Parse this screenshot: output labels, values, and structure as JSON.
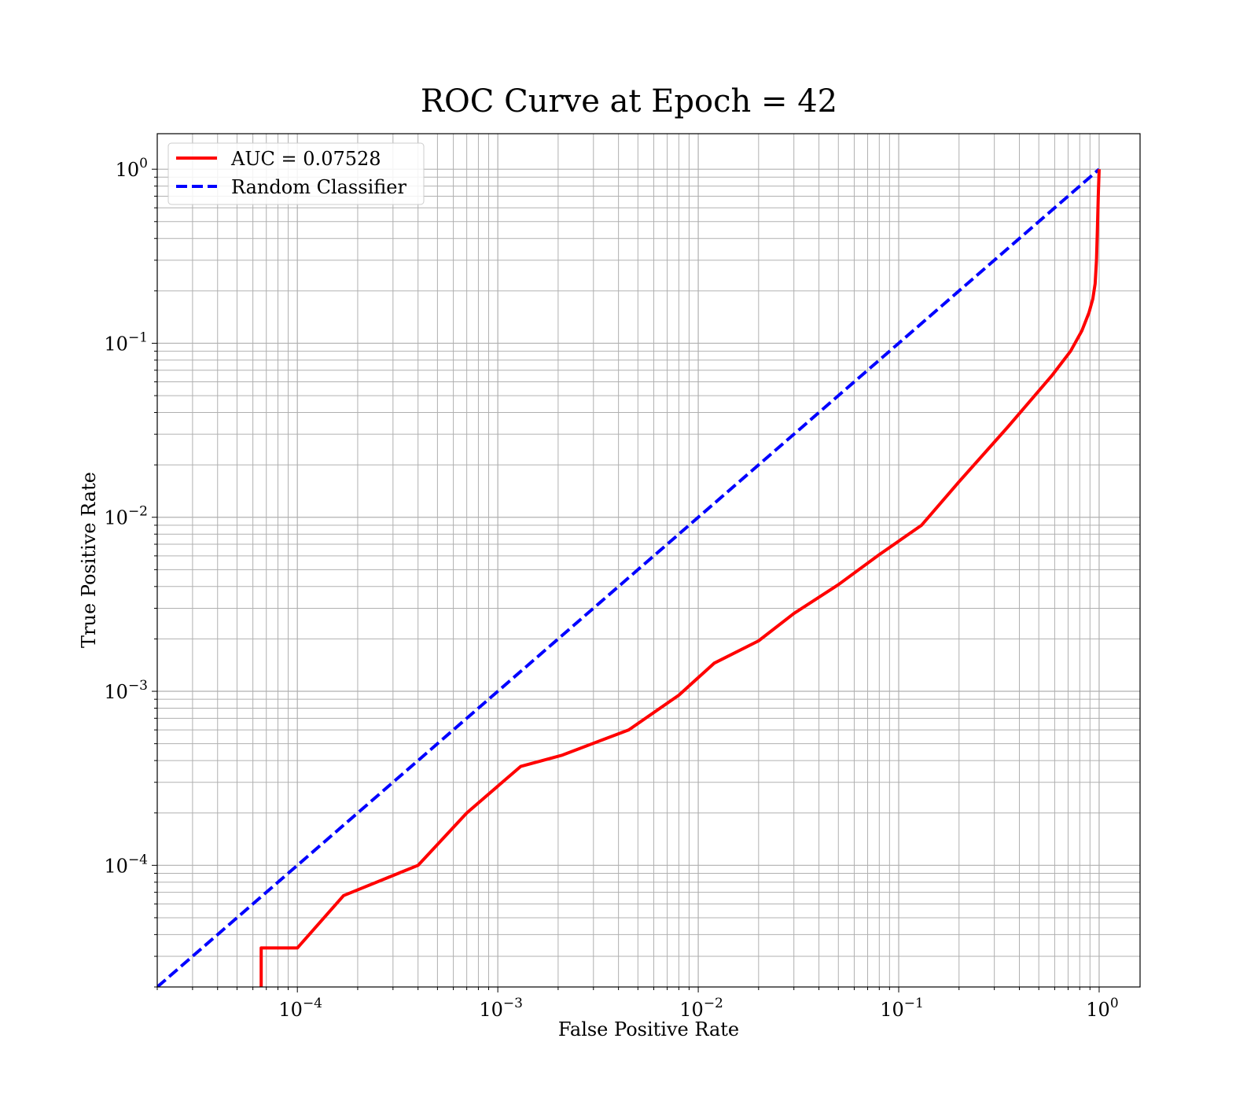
{
  "chart_data": {
    "type": "line",
    "title": "ROC Curve at Epoch = 42",
    "xlabel": "False Positive Rate",
    "ylabel": "True Positive Rate",
    "xscale": "log",
    "yscale": "log",
    "xlim": [
      2e-05,
      1.6
    ],
    "ylim": [
      2e-05,
      1.6
    ],
    "grid": true,
    "legend_position": "upper-left",
    "x_ticks": [
      {
        "value": 0.0001,
        "base": "10",
        "exp": "−4"
      },
      {
        "value": 0.001,
        "base": "10",
        "exp": "−3"
      },
      {
        "value": 0.01,
        "base": "10",
        "exp": "−2"
      },
      {
        "value": 0.1,
        "base": "10",
        "exp": "−1"
      },
      {
        "value": 1,
        "base": "10",
        "exp": "0"
      }
    ],
    "y_ticks": [
      {
        "value": 0.0001,
        "base": "10",
        "exp": "−4"
      },
      {
        "value": 0.001,
        "base": "10",
        "exp": "−3"
      },
      {
        "value": 0.01,
        "base": "10",
        "exp": "−2"
      },
      {
        "value": 0.1,
        "base": "10",
        "exp": "−1"
      },
      {
        "value": 1,
        "base": "10",
        "exp": "0"
      }
    ],
    "series": [
      {
        "name": "AUC = 0.07528",
        "color": "#ff0000",
        "style": "solid",
        "x": [
          6.6e-05,
          6.6e-05,
          0.0001,
          0.00017,
          0.0004,
          0.0007,
          0.0013,
          0.0021,
          0.0045,
          0.008,
          0.012,
          0.02,
          0.03,
          0.05,
          0.08,
          0.13,
          0.2,
          0.35,
          0.58,
          0.72,
          0.82,
          0.89,
          0.93,
          0.955,
          0.97,
          0.98,
          0.99,
          1.0
        ],
        "y": [
          2e-05,
          3.35e-05,
          3.35e-05,
          6.7e-05,
          0.0001,
          0.0002,
          0.00037,
          0.00043,
          0.0006,
          0.00095,
          0.00145,
          0.00195,
          0.0028,
          0.0041,
          0.0061,
          0.009,
          0.016,
          0.033,
          0.065,
          0.09,
          0.118,
          0.15,
          0.18,
          0.22,
          0.3,
          0.45,
          0.7,
          1.0
        ]
      },
      {
        "name": "Random Classifier",
        "color": "#0000ff",
        "style": "dashed",
        "x": [
          2e-05,
          1.0
        ],
        "y": [
          2e-05,
          1.0
        ]
      }
    ]
  }
}
